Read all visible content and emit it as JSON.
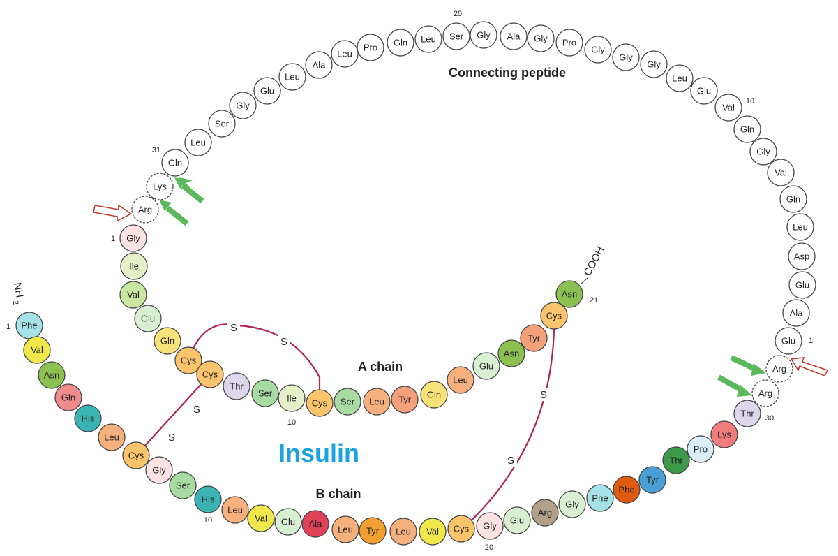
{
  "title": "Insulin",
  "labels": {
    "connecting": "Connecting peptide",
    "a_chain": "A chain",
    "b_chain": "B chain",
    "nh2": "NH",
    "nh2_sub": "2",
    "cooh": "COOH",
    "sulfur": "S"
  },
  "colors": {
    "title": "#1aa3e0",
    "disulfide": "#b0245a",
    "green_arrow": "#5cb85c",
    "red_arrow": "#c0392b"
  },
  "connecting_peptide": {
    "residues": [
      "Gln",
      "Leu",
      "Ser",
      "Gly",
      "Glu",
      "Leu",
      "Ala",
      "Leu",
      "Pro",
      "Gln",
      "Leu",
      "Ser",
      "Gly",
      "Ala",
      "Gly",
      "Pro",
      "Gly",
      "Gly",
      "Gly",
      "Leu",
      "Glu",
      "Val",
      "Gln",
      "Gly",
      "Val",
      "Gln",
      "Leu",
      "Asp",
      "Glu",
      "Ala",
      "Glu"
    ],
    "numbers": [
      "31",
      "20",
      "10",
      "1"
    ]
  },
  "cleavage_sites": {
    "left": [
      "Lys",
      "Arg"
    ],
    "right": [
      "Arg",
      "Arg"
    ]
  },
  "a_chain": {
    "residues": [
      "Gly",
      "Ile",
      "Val",
      "Glu",
      "Gln",
      "Cys",
      "Cys",
      "Thr",
      "Ser",
      "Ile",
      "Cys",
      "Ser",
      "Leu",
      "Tyr",
      "Gln",
      "Leu",
      "Glu",
      "Asn",
      "Tyr",
      "Cys",
      "Asn"
    ],
    "numbers": [
      "1",
      "10",
      "21"
    ]
  },
  "b_chain": {
    "residues": [
      "Phe",
      "Val",
      "Asn",
      "Gln",
      "His",
      "Leu",
      "Cys",
      "Gly",
      "Ser",
      "His",
      "Leu",
      "Val",
      "Glu",
      "Ala",
      "Leu",
      "Tyr",
      "Leu",
      "Val",
      "Cys",
      "Gly",
      "Glu",
      "Arg",
      "Gly",
      "Phe",
      "Phe",
      "Tyr",
      "Thr",
      "Pro",
      "Lys",
      "Thr"
    ],
    "numbers": [
      "1",
      "10",
      "20",
      "30"
    ]
  }
}
